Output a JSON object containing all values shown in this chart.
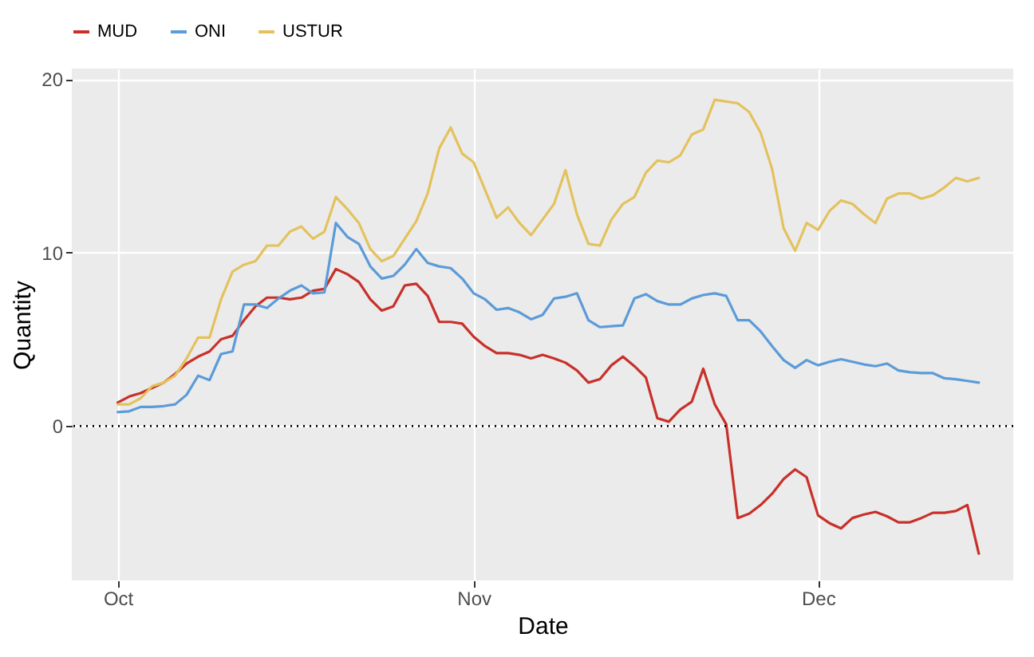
{
  "chart_data": {
    "type": "line",
    "xlabel": "Date",
    "ylabel": "Quantity",
    "x": [
      "--10-01",
      "--10-02",
      "--10-03",
      "--10-04",
      "--10-05",
      "--10-06",
      "--10-07",
      "--10-08",
      "--10-09",
      "--10-10",
      "--10-11",
      "--10-12",
      "--10-13",
      "--10-14",
      "--10-15",
      "--10-16",
      "--10-17",
      "--10-18",
      "--10-19",
      "--10-20",
      "--10-21",
      "--10-22",
      "--10-23",
      "--10-24",
      "--10-25",
      "--10-26",
      "--10-27",
      "--10-28",
      "--10-29",
      "--10-30",
      "--10-31",
      "--11-01",
      "--11-02",
      "--11-03",
      "--11-04",
      "--11-05",
      "--11-06",
      "--11-07",
      "--11-08",
      "--11-09",
      "--11-10",
      "--11-11",
      "--11-12",
      "--11-13",
      "--11-14",
      "--11-15",
      "--11-16",
      "--11-17",
      "--11-18",
      "--11-19",
      "--11-20",
      "--11-21",
      "--11-22",
      "--11-23",
      "--11-24",
      "--11-25",
      "--11-26",
      "--11-27",
      "--11-28",
      "--11-29",
      "--11-30",
      "--12-01",
      "--12-02",
      "--12-03",
      "--12-04",
      "--12-05",
      "--12-06",
      "--12-07",
      "--12-08",
      "--12-09",
      "--12-10",
      "--12-11",
      "--12-12",
      "--12-13",
      "--12-14",
      "--12-15"
    ],
    "series": [
      {
        "name": "MUD",
        "color": "#c8302a",
        "values": [
          1.35,
          1.7,
          1.9,
          2.2,
          2.5,
          3.0,
          3.6,
          4.0,
          4.3,
          5.0,
          5.2,
          6.1,
          6.9,
          7.4,
          7.4,
          7.3,
          7.4,
          7.8,
          7.9,
          9.05,
          8.75,
          8.3,
          7.3,
          6.65,
          6.9,
          8.1,
          8.2,
          7.5,
          6.0,
          6.0,
          5.9,
          5.15,
          4.6,
          4.2,
          4.2,
          4.1,
          3.9,
          4.1,
          3.9,
          3.65,
          3.2,
          2.5,
          2.7,
          3.5,
          4.0,
          3.45,
          2.8,
          0.45,
          0.25,
          0.95,
          1.4,
          3.3,
          1.25,
          0.1,
          -5.3,
          -5.05,
          -4.55,
          -3.9,
          -3.05,
          -2.5,
          -2.95,
          -5.15,
          -5.6,
          -5.9,
          -5.3,
          -5.1,
          -4.95,
          -5.2,
          -5.55,
          -5.55,
          -5.3,
          -5.0,
          -5.0,
          -4.9,
          -4.55,
          -7.35
        ]
      },
      {
        "name": "ONI",
        "color": "#5b9bd8",
        "values": [
          0.8,
          0.85,
          1.1,
          1.1,
          1.15,
          1.25,
          1.8,
          2.9,
          2.65,
          4.15,
          4.3,
          7.0,
          7.0,
          6.8,
          7.35,
          7.8,
          8.1,
          7.65,
          7.7,
          11.7,
          10.9,
          10.5,
          9.2,
          8.5,
          8.65,
          9.3,
          10.2,
          9.4,
          9.2,
          9.1,
          8.5,
          7.65,
          7.3,
          6.7,
          6.8,
          6.55,
          6.15,
          6.4,
          7.35,
          7.45,
          7.65,
          6.1,
          5.7,
          5.75,
          5.8,
          7.35,
          7.6,
          7.2,
          7.0,
          7.0,
          7.35,
          7.55,
          7.65,
          7.5,
          6.1,
          6.1,
          5.45,
          4.6,
          3.8,
          3.35,
          3.8,
          3.5,
          3.7,
          3.85,
          3.7,
          3.55,
          3.45,
          3.6,
          3.2,
          3.1,
          3.05,
          3.05,
          2.75,
          2.7,
          2.6,
          2.5
        ]
      },
      {
        "name": "USTUR",
        "color": "#e3c25e",
        "values": [
          1.25,
          1.25,
          1.6,
          2.3,
          2.5,
          2.9,
          3.9,
          5.1,
          5.1,
          7.3,
          8.9,
          9.3,
          9.5,
          10.4,
          10.4,
          11.2,
          11.5,
          10.8,
          11.2,
          13.2,
          12.5,
          11.7,
          10.2,
          9.5,
          9.8,
          10.8,
          11.8,
          13.4,
          16.0,
          17.2,
          15.7,
          15.2,
          13.6,
          12.0,
          12.6,
          11.7,
          11.0,
          11.9,
          12.8,
          14.75,
          12.2,
          10.5,
          10.4,
          11.9,
          12.8,
          13.2,
          14.6,
          15.3,
          15.2,
          15.6,
          16.8,
          17.1,
          18.8,
          18.7,
          18.6,
          18.1,
          16.9,
          14.8,
          11.4,
          10.1,
          11.7,
          11.3,
          12.4,
          13.0,
          12.8,
          12.2,
          11.7,
          13.1,
          13.4,
          13.4,
          13.1,
          13.3,
          13.75,
          14.3,
          14.1,
          14.3
        ]
      }
    ],
    "xlim": [
      "--09-27",
      "--12-18"
    ],
    "xticks": [
      {
        "value": "--10-01",
        "label": "Oct"
      },
      {
        "value": "--11-01",
        "label": "Nov"
      },
      {
        "value": "--12-01",
        "label": "Dec"
      }
    ],
    "ylim": [
      -8.9,
      20.6
    ],
    "yticks": [
      0,
      10,
      20
    ],
    "ref_lines": [
      {
        "axis": "y",
        "value": 0,
        "color": "#000000",
        "line_style": "dotted"
      }
    ],
    "grid": true,
    "legend": "top left",
    "line_style": "solid"
  }
}
